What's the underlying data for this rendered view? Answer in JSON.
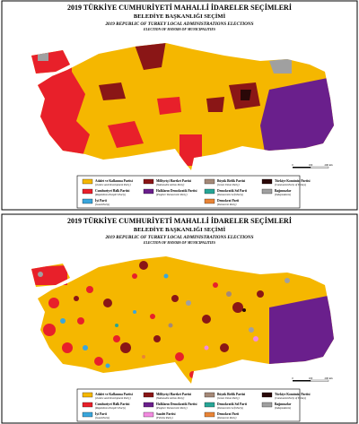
{
  "panels": [
    {
      "title": "2019 TÜRKİYE CUMHURİYETİ MAHALLİ İDARELER SEÇİMLERİ",
      "subtitle": "BELEDİYE BAŞKANLIĞI SEÇİMİ",
      "english_title": "2019 REPUBLIC OF TURKEY LOCAL ADMINISTRATIONS ELECTIONS",
      "english_subtitle": "ELECTION OF MAYORS OF MUNICIPALITIES",
      "scale_labels": [
        "0",
        "100",
        "200 km"
      ],
      "legend": [
        [
          {
            "name": "Adalet ve Kalkınma Partisi",
            "english": "(Justice and Development Party)",
            "color": "#f5b700"
          },
          {
            "name": "Cumhuriyet Halk Partisi",
            "english": "(Republican People's Party)",
            "color": "#e8202a"
          },
          {
            "name": "İyi Parti",
            "english": "(Good Party)",
            "color": "#3aa6dc"
          }
        ],
        [
          {
            "name": "Milliyetçi Hareket Partisi",
            "english": "(Nationalist Action Party)",
            "color": "#8a1616"
          },
          {
            "name": "Halkların Demokratik Partisi",
            "english": "(Peoples' Democratic Party)",
            "color": "#6a1f8c"
          }
        ],
        [
          {
            "name": "Büyük Birlik Partisi",
            "english": "(Great Union Party)",
            "color": "#a48978"
          },
          {
            "name": "Demokratik Sol Parti",
            "english": "(Democratic Left Party)",
            "color": "#27a596"
          },
          {
            "name": "Demokrat Parti",
            "english": "(Democrat Party)",
            "color": "#e88436"
          }
        ],
        [
          {
            "name": "Türkiye Komünist Partisi",
            "english": "(Communist Party of Turkey)",
            "color": "#2a0808"
          },
          {
            "name": "Bağımsızlar",
            "english": "(Independents)",
            "color": "#a0a0a0"
          }
        ]
      ]
    },
    {
      "title": "2019 TÜRKİYE CUMHURİYETİ MAHALLİ İDARELER SEÇİMLERİ",
      "subtitle": "BELEDİYE BAŞKANLIĞI SEÇİMİ",
      "english_title": "2019 REPUBLIC OF TURKEY LOCAL ADMINISTRATIONS ELECTIONS",
      "english_subtitle": "ELECTION OF MAYORS OF MUNICIPALITIES",
      "scale_labels": [
        "0",
        "100",
        "200 km"
      ],
      "legend": [
        [
          {
            "name": "Adalet ve Kalkınma Partisi",
            "english": "(Justice and Development Party)",
            "color": "#f5b700"
          },
          {
            "name": "Cumhuriyet Halk Partisi",
            "english": "(Republican People's Party)",
            "color": "#e8202a"
          },
          {
            "name": "İyi Parti",
            "english": "(Good Party)",
            "color": "#3aa6dc"
          }
        ],
        [
          {
            "name": "Milliyetçi Hareket Partisi",
            "english": "(Nationalist Action Party)",
            "color": "#8a1616"
          },
          {
            "name": "Halkların Demokratik Partisi",
            "english": "(Peoples' Democratic Party)",
            "color": "#6a1f8c"
          },
          {
            "name": "Saadet Partisi",
            "english": "(Felicity Party)",
            "color": "#f28be0"
          }
        ],
        [
          {
            "name": "Büyük Birlik Partisi",
            "english": "(Great Union Party)",
            "color": "#a48978"
          },
          {
            "name": "Demokratik Sol Parti",
            "english": "(Democratic Left Party)",
            "color": "#27a596"
          },
          {
            "name": "Demokrat Parti",
            "english": "(Democrat Party)",
            "color": "#e88436"
          }
        ],
        [
          {
            "name": "Türkiye Komünist Partisi",
            "english": "(Communist Party of Turkey)",
            "color": "#2a0808"
          },
          {
            "name": "Bağımsızlar",
            "english": "(Independents)",
            "color": "#a0a0a0"
          }
        ]
      ]
    }
  ]
}
